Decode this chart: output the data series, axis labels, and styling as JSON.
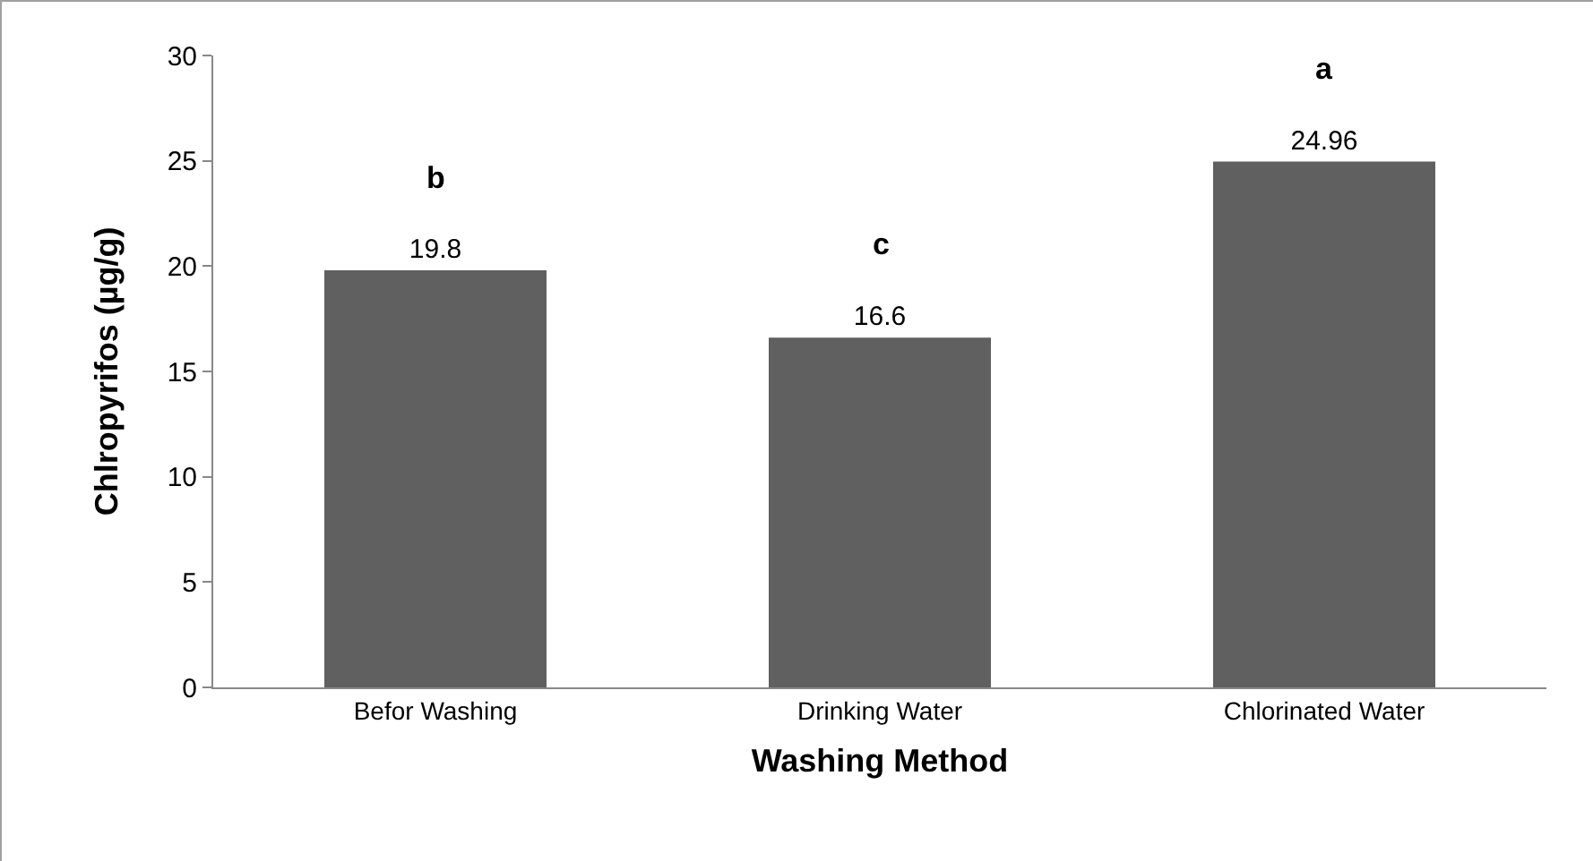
{
  "chart_data": {
    "type": "bar",
    "xlabel": "Washing Method",
    "ylabel": "Chlropyrifos (µg/g)",
    "categories": [
      "Befor Washing",
      "Drinking Water",
      "Chlorinated Water"
    ],
    "values": [
      19.8,
      16.6,
      24.96
    ],
    "color": "#606060",
    "data_labels": true,
    "ylim": [
      0,
      30
    ],
    "yticks": [
      0,
      5,
      10,
      15,
      20,
      25,
      30
    ],
    "annotations": [
      {
        "text": "b",
        "x": "Befor Washing",
        "y": 19.8
      },
      {
        "text": "c",
        "x": "Drinking Water",
        "y": 16.6
      },
      {
        "text": "a",
        "x": "Chlorinated Water",
        "y": 24.96
      }
    ]
  }
}
